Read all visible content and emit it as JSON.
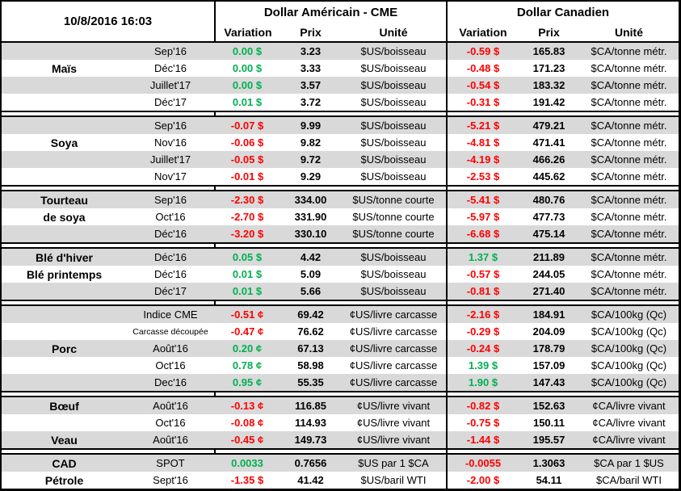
{
  "meta": {
    "timestamp": "10/8/2016 16:03"
  },
  "sections": {
    "us": "Dollar Américain - CME",
    "ca": "Dollar Canadien"
  },
  "columns": {
    "variation": "Variation",
    "prix": "Prix",
    "unite": "Unité"
  },
  "colors": {
    "positive": "#00B050",
    "negative": "#FF0000",
    "row_shade": "#D9D9D9",
    "border": "#000000"
  },
  "groups": [
    {
      "label": "Maïs",
      "rows": [
        {
          "name": "",
          "contract": "Sep'16",
          "us_var": "0.00 $",
          "us_dir": "pos",
          "us_prix": "3.23",
          "us_unit": "$US/boisseau",
          "ca_var": "-0.59 $",
          "ca_dir": "neg",
          "ca_prix": "165.83",
          "ca_unit": "$CA/tonne métr.",
          "shade": "gray"
        },
        {
          "name": "Maïs",
          "contract": "Déc'16",
          "us_var": "0.00 $",
          "us_dir": "pos",
          "us_prix": "3.33",
          "us_unit": "$US/boisseau",
          "ca_var": "-0.48 $",
          "ca_dir": "neg",
          "ca_prix": "171.23",
          "ca_unit": "$CA/tonne métr.",
          "shade": "white"
        },
        {
          "name": "",
          "contract": "Juillet'17",
          "us_var": "0.00 $",
          "us_dir": "pos",
          "us_prix": "3.57",
          "us_unit": "$US/boisseau",
          "ca_var": "-0.54 $",
          "ca_dir": "neg",
          "ca_prix": "183.32",
          "ca_unit": "$CA/tonne métr.",
          "shade": "gray"
        },
        {
          "name": "",
          "contract": "Déc'17",
          "us_var": "0.01 $",
          "us_dir": "pos",
          "us_prix": "3.72",
          "us_unit": "$US/boisseau",
          "ca_var": "-0.31 $",
          "ca_dir": "neg",
          "ca_prix": "191.42",
          "ca_unit": "$CA/tonne métr.",
          "shade": "white"
        }
      ]
    },
    {
      "label": "Soya",
      "rows": [
        {
          "name": "",
          "contract": "Sep'16",
          "us_var": "-0.07 $",
          "us_dir": "neg",
          "us_prix": "9.99",
          "us_unit": "$US/boisseau",
          "ca_var": "-5.21 $",
          "ca_dir": "neg",
          "ca_prix": "479.21",
          "ca_unit": "$CA/tonne métr.",
          "shade": "gray"
        },
        {
          "name": "Soya",
          "contract": "Nov'16",
          "us_var": "-0.06 $",
          "us_dir": "neg",
          "us_prix": "9.82",
          "us_unit": "$US/boisseau",
          "ca_var": "-4.81 $",
          "ca_dir": "neg",
          "ca_prix": "471.41",
          "ca_unit": "$CA/tonne métr.",
          "shade": "white"
        },
        {
          "name": "",
          "contract": "Juillet'17",
          "us_var": "-0.05 $",
          "us_dir": "neg",
          "us_prix": "9.72",
          "us_unit": "$US/boisseau",
          "ca_var": "-4.19 $",
          "ca_dir": "neg",
          "ca_prix": "466.26",
          "ca_unit": "$CA/tonne métr.",
          "shade": "gray"
        },
        {
          "name": "",
          "contract": "Nov'17",
          "us_var": "-0.01 $",
          "us_dir": "neg",
          "us_prix": "9.29",
          "us_unit": "$US/boisseau",
          "ca_var": "-2.53 $",
          "ca_dir": "neg",
          "ca_prix": "445.62",
          "ca_unit": "$CA/tonne métr.",
          "shade": "white"
        }
      ]
    },
    {
      "label": "Tourteau de soya",
      "rows": [
        {
          "name": "Tourteau",
          "contract": "Sep'16",
          "us_var": "-2.30 $",
          "us_dir": "neg",
          "us_prix": "334.00",
          "us_unit": "$US/tonne courte",
          "ca_var": "-5.41 $",
          "ca_dir": "neg",
          "ca_prix": "480.76",
          "ca_unit": "$CA/tonne métr.",
          "shade": "gray"
        },
        {
          "name": "de soya",
          "contract": "Oct'16",
          "us_var": "-2.70 $",
          "us_dir": "neg",
          "us_prix": "331.90",
          "us_unit": "$US/tonne courte",
          "ca_var": "-5.97 $",
          "ca_dir": "neg",
          "ca_prix": "477.73",
          "ca_unit": "$CA/tonne métr.",
          "shade": "white"
        },
        {
          "name": "",
          "contract": "Déc'16",
          "us_var": "-3.20 $",
          "us_dir": "neg",
          "us_prix": "330.10",
          "us_unit": "$US/tonne courte",
          "ca_var": "-6.68 $",
          "ca_dir": "neg",
          "ca_prix": "475.14",
          "ca_unit": "$CA/tonne métr.",
          "shade": "gray"
        }
      ]
    },
    {
      "label": "Blé",
      "rows": [
        {
          "name": "Blé d'hiver",
          "contract": "Déc'16",
          "us_var": "0.05 $",
          "us_dir": "pos",
          "us_prix": "4.42",
          "us_unit": "$US/boisseau",
          "ca_var": "1.37 $",
          "ca_dir": "pos",
          "ca_prix": "211.89",
          "ca_unit": "$CA/tonne métr.",
          "shade": "gray"
        },
        {
          "name": "Blé printemps",
          "contract": "Déc'16",
          "us_var": "0.01 $",
          "us_dir": "pos",
          "us_prix": "5.09",
          "us_unit": "$US/boisseau",
          "ca_var": "-0.57 $",
          "ca_dir": "neg",
          "ca_prix": "244.05",
          "ca_unit": "$CA/tonne métr.",
          "shade": "white"
        },
        {
          "name": "",
          "contract": "Déc'17",
          "us_var": "0.01 $",
          "us_dir": "pos",
          "us_prix": "5.66",
          "us_unit": "$US/boisseau",
          "ca_var": "-0.81 $",
          "ca_dir": "neg",
          "ca_prix": "271.40",
          "ca_unit": "$CA/tonne métr.",
          "shade": "gray"
        }
      ]
    },
    {
      "label": "Porc",
      "rows": [
        {
          "name": "",
          "contract": "Indice CME",
          "us_var": "-0.51 ¢",
          "us_dir": "neg",
          "us_prix": "69.42",
          "us_unit": "¢US/livre carcasse",
          "ca_var": "-2.16 $",
          "ca_dir": "neg",
          "ca_prix": "184.91",
          "ca_unit": "$CA/100kg (Qc)",
          "shade": "gray"
        },
        {
          "name": "",
          "contract": "Carcasse découpée",
          "small": true,
          "us_var": "-0.47 ¢",
          "us_dir": "neg",
          "us_prix": "76.62",
          "us_unit": "¢US/livre carcasse",
          "ca_var": "-0.29 $",
          "ca_dir": "neg",
          "ca_prix": "204.09",
          "ca_unit": "$CA/100kg (Qc)",
          "shade": "white"
        },
        {
          "name": "Porc",
          "contract": "Août'16",
          "us_var": "0.20 ¢",
          "us_dir": "pos",
          "us_prix": "67.13",
          "us_unit": "¢US/livre carcasse",
          "ca_var": "-0.24 $",
          "ca_dir": "neg",
          "ca_prix": "178.79",
          "ca_unit": "$CA/100kg (Qc)",
          "shade": "gray"
        },
        {
          "name": "",
          "contract": "Oct'16",
          "us_var": "0.78 ¢",
          "us_dir": "pos",
          "us_prix": "58.98",
          "us_unit": "¢US/livre carcasse",
          "ca_var": "1.39 $",
          "ca_dir": "pos",
          "ca_prix": "157.09",
          "ca_unit": "$CA/100kg (Qc)",
          "shade": "white"
        },
        {
          "name": "",
          "contract": "Dec'16",
          "us_var": "0.95 ¢",
          "us_dir": "pos",
          "us_prix": "55.35",
          "us_unit": "¢US/livre carcasse",
          "ca_var": "1.90 $",
          "ca_dir": "pos",
          "ca_prix": "147.43",
          "ca_unit": "$CA/100kg (Qc)",
          "shade": "gray"
        }
      ]
    },
    {
      "label": "Bœuf / Veau",
      "rows": [
        {
          "name": "Bœuf",
          "contract": "Août'16",
          "us_var": "-0.13 ¢",
          "us_dir": "neg",
          "us_prix": "116.85",
          "us_unit": "¢US/livre vivant",
          "ca_var": "-0.82 $",
          "ca_dir": "neg",
          "ca_prix": "152.63",
          "ca_unit": "¢CA/livre vivant",
          "shade": "gray"
        },
        {
          "name": "",
          "contract": "Oct'16",
          "us_var": "-0.08 ¢",
          "us_dir": "neg",
          "us_prix": "114.93",
          "us_unit": "¢US/livre vivant",
          "ca_var": "-0.75 $",
          "ca_dir": "neg",
          "ca_prix": "150.11",
          "ca_unit": "¢CA/livre vivant",
          "shade": "white"
        },
        {
          "name": "Veau",
          "contract": "Août'16",
          "us_var": "-0.45 ¢",
          "us_dir": "neg",
          "us_prix": "149.73",
          "us_unit": "¢US/livre vivant",
          "ca_var": "-1.44 $",
          "ca_dir": "neg",
          "ca_prix": "195.57",
          "ca_unit": "¢CA/livre vivant",
          "shade": "gray"
        }
      ]
    },
    {
      "label": "CAD / Pétrole",
      "rows": [
        {
          "name": "CAD",
          "contract": "SPOT",
          "us_var": "0.0033",
          "us_dir": "pos",
          "us_prix": "0.7656",
          "us_unit": "$US par 1 $CA",
          "ca_var": "-0.0055",
          "ca_dir": "neg",
          "ca_prix": "1.3063",
          "ca_unit": "$CA par 1 $US",
          "shade": "gray"
        },
        {
          "name": "Pétrole",
          "contract": "Sept'16",
          "us_var": "-1.35 $",
          "us_dir": "neg",
          "us_prix": "41.42",
          "us_unit": "$US/baril WTI",
          "ca_var": "-2.00 $",
          "ca_dir": "neg",
          "ca_prix": "54.11",
          "ca_unit": "$CA/baril WTI",
          "shade": "white"
        }
      ]
    }
  ]
}
